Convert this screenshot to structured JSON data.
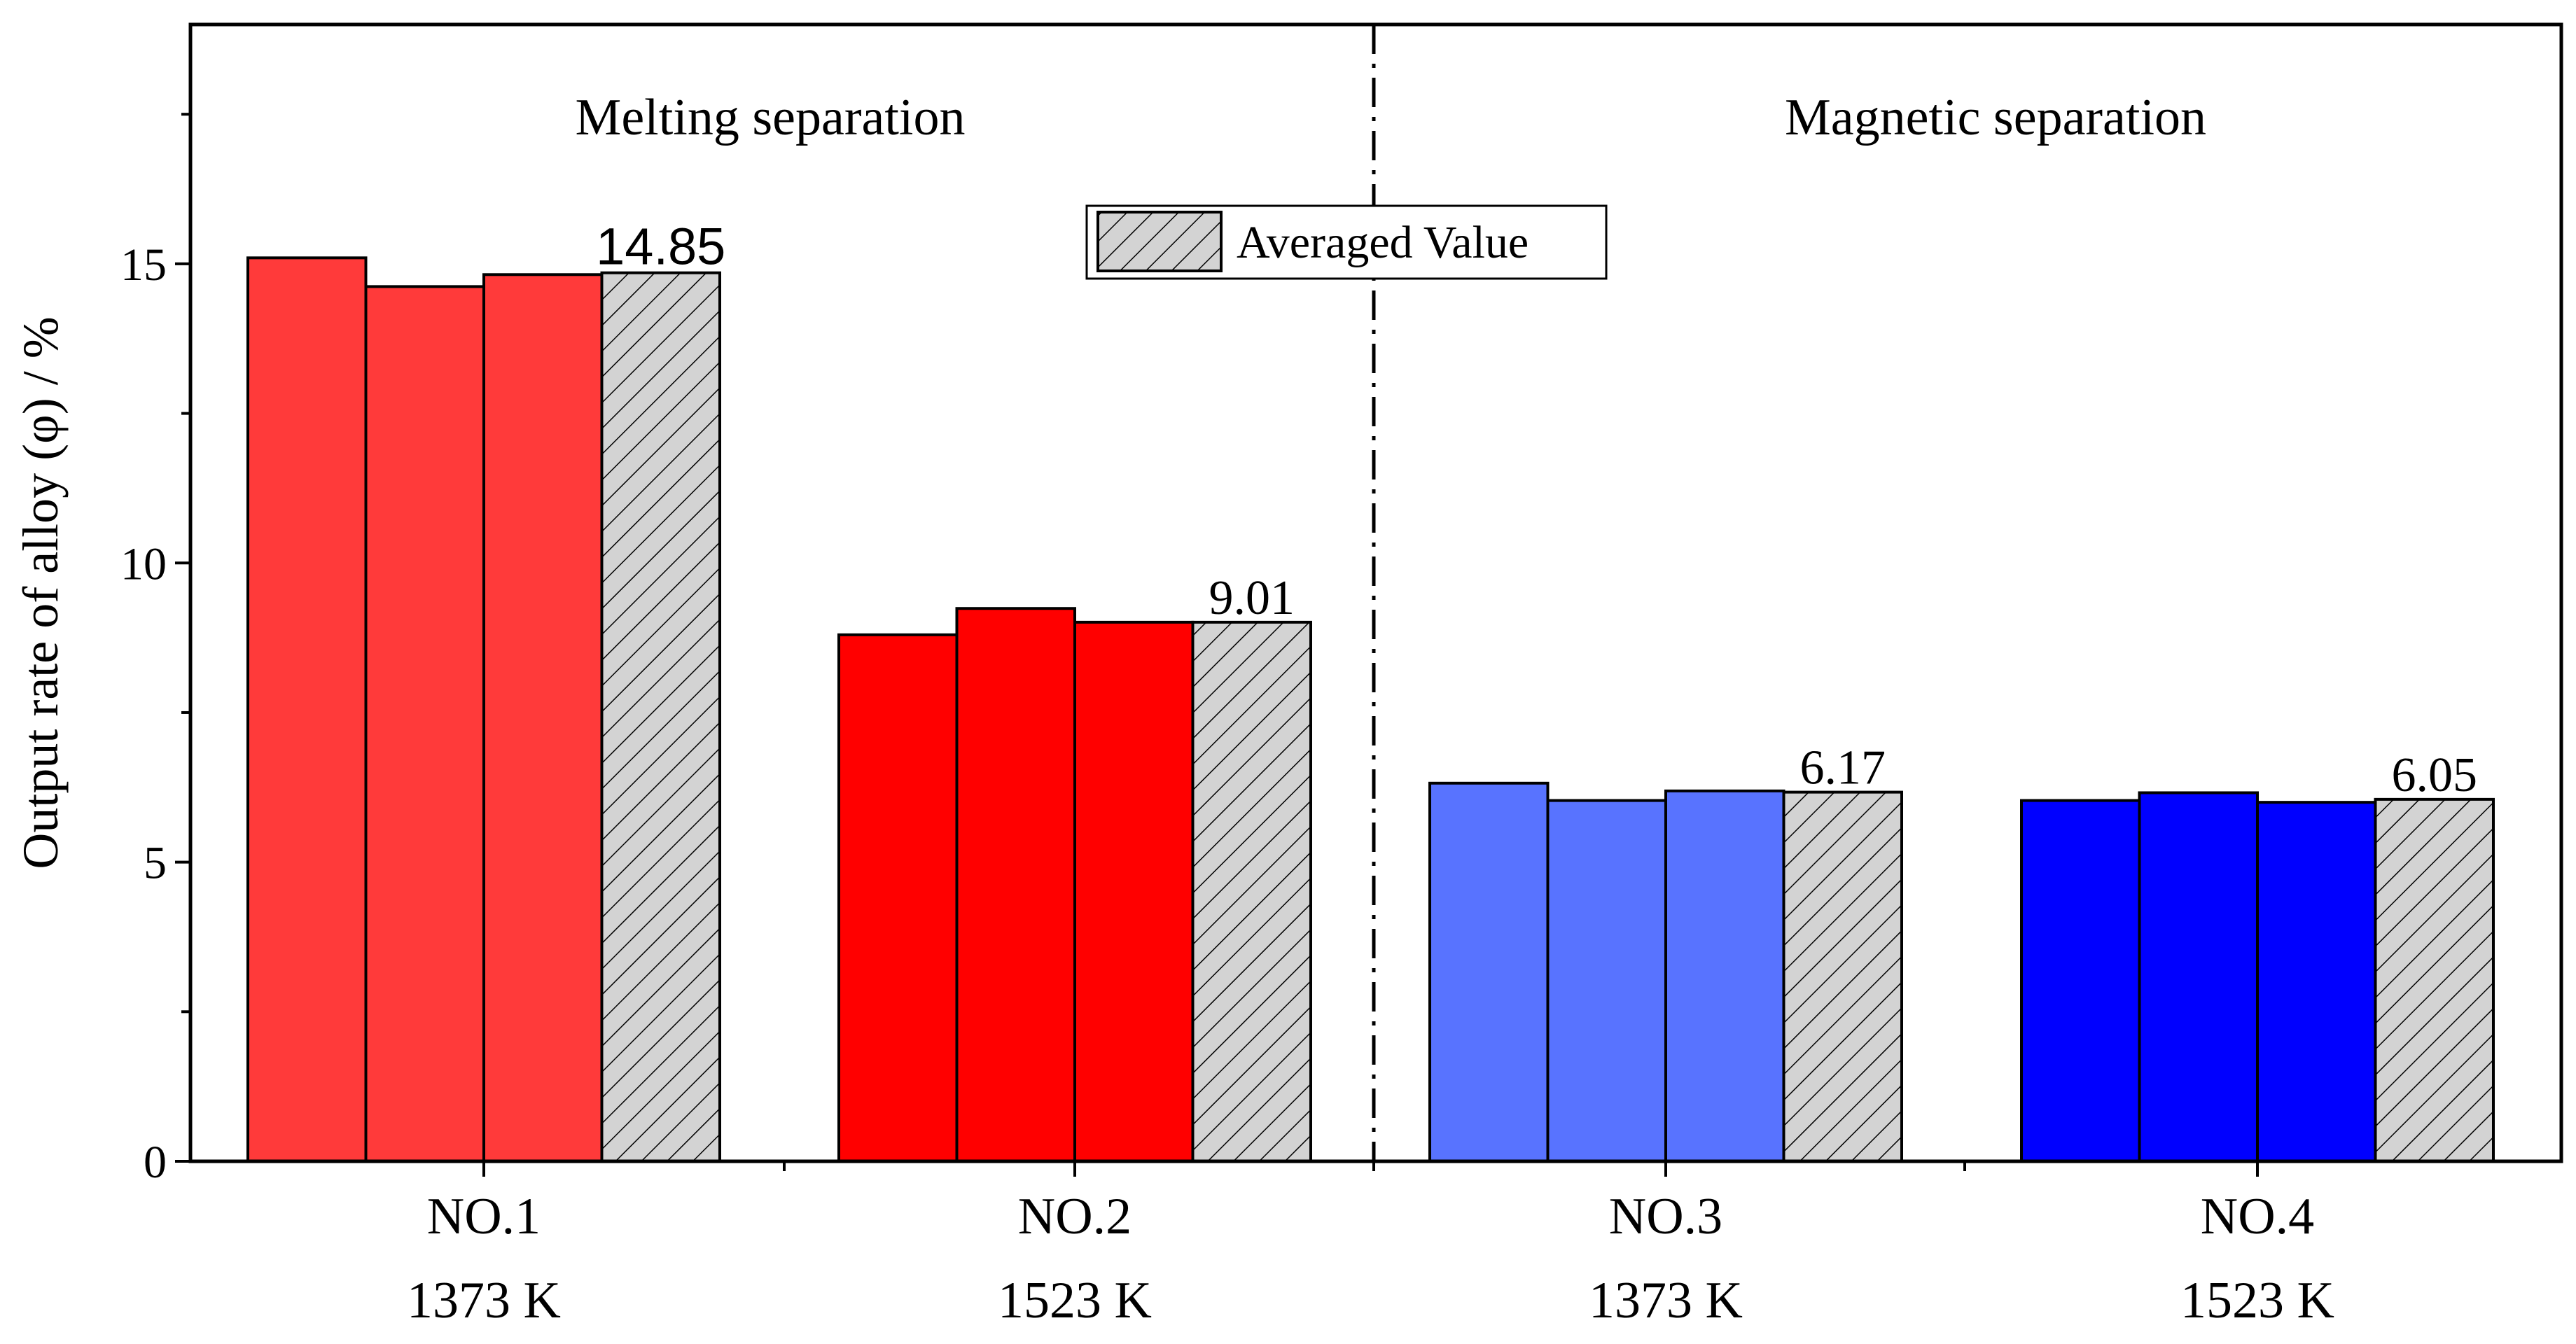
{
  "chart_data": {
    "type": "bar",
    "title": "",
    "xlabel": "",
    "ylabel": "Output rate of alloy (φ) / %",
    "ylim": [
      0,
      19
    ],
    "yticks": [
      0,
      5,
      10,
      15
    ],
    "yticks_minor": [
      2.5,
      7.5,
      12.5,
      17.5
    ],
    "grid": false,
    "sections": [
      "Melting separation",
      "Magnetic separation"
    ],
    "legend": {
      "label": "Averaged Value",
      "placement": "top-center"
    },
    "groups": [
      {
        "name": "NO.1",
        "temperature": "1373 K",
        "section": "Melting separation",
        "color": "#ff3a3a",
        "values": [
          15.1,
          14.62,
          14.82
        ],
        "average": 14.85,
        "average_label": "14.85"
      },
      {
        "name": "NO.2",
        "temperature": "1523 K",
        "section": "Melting separation",
        "color": "#ff0000",
        "values": [
          8.8,
          9.24,
          9.01
        ],
        "average": 9.01,
        "average_label": "9.01"
      },
      {
        "name": "NO.3",
        "temperature": "1373 K",
        "section": "Magnetic separation",
        "color": "#5873ff",
        "values": [
          6.32,
          6.03,
          6.19
        ],
        "average": 6.17,
        "average_label": "6.17"
      },
      {
        "name": "NO.4",
        "temperature": "1523 K",
        "section": "Magnetic separation",
        "color": "#0000ff",
        "values": [
          6.03,
          6.16,
          6.0
        ],
        "average": 6.05,
        "average_label": "6.05"
      }
    ],
    "average_bar_color": "#d3d3d3"
  }
}
